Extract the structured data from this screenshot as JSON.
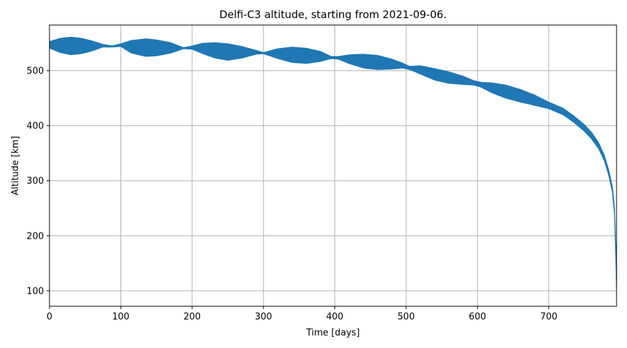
{
  "chart_data": {
    "type": "area",
    "title": "Delfi-C3 altitude, starting from 2021-09-06.",
    "xlabel": "Time [days]",
    "ylabel": "Altitude [km]",
    "xlim": [
      0,
      795
    ],
    "ylim": [
      72,
      583
    ],
    "xticks": [
      0,
      100,
      200,
      300,
      400,
      500,
      600,
      700
    ],
    "yticks": [
      100,
      200,
      300,
      400,
      500
    ],
    "grid": true,
    "legend": "none",
    "series": [
      {
        "color": "#1f77b4",
        "upper": [
          [
            0,
            553
          ],
          [
            15,
            559
          ],
          [
            30,
            561
          ],
          [
            45,
            559
          ],
          [
            60,
            554
          ],
          [
            75,
            548
          ],
          [
            88,
            545
          ],
          [
            100,
            549
          ],
          [
            115,
            555
          ],
          [
            135,
            558
          ],
          [
            150,
            556
          ],
          [
            170,
            551
          ],
          [
            188,
            542
          ],
          [
            200,
            545
          ],
          [
            215,
            550
          ],
          [
            232,
            551
          ],
          [
            250,
            549
          ],
          [
            270,
            544
          ],
          [
            290,
            537
          ],
          [
            300,
            533
          ],
          [
            320,
            540
          ],
          [
            340,
            543
          ],
          [
            360,
            541
          ],
          [
            380,
            535
          ],
          [
            395,
            526
          ],
          [
            405,
            526
          ],
          [
            420,
            529
          ],
          [
            440,
            530
          ],
          [
            460,
            528
          ],
          [
            480,
            521
          ],
          [
            495,
            514
          ],
          [
            505,
            508
          ],
          [
            520,
            509
          ],
          [
            540,
            504
          ],
          [
            560,
            498
          ],
          [
            580,
            490
          ],
          [
            595,
            482
          ],
          [
            605,
            479
          ],
          [
            620,
            478
          ],
          [
            640,
            474
          ],
          [
            660,
            466
          ],
          [
            680,
            456
          ],
          [
            700,
            443
          ],
          [
            720,
            432
          ],
          [
            735,
            418
          ],
          [
            750,
            402
          ],
          [
            760,
            388
          ],
          [
            770,
            369
          ],
          [
            778,
            346
          ],
          [
            784,
            320
          ],
          [
            789,
            290
          ],
          [
            792,
            255
          ],
          [
            794,
            180
          ],
          [
            795,
            95
          ]
        ],
        "lower": [
          [
            0,
            541
          ],
          [
            15,
            533
          ],
          [
            30,
            529
          ],
          [
            45,
            531
          ],
          [
            60,
            536
          ],
          [
            75,
            543
          ],
          [
            88,
            543
          ],
          [
            100,
            544
          ],
          [
            115,
            532
          ],
          [
            135,
            526
          ],
          [
            150,
            527
          ],
          [
            170,
            532
          ],
          [
            188,
            540
          ],
          [
            200,
            539
          ],
          [
            215,
            531
          ],
          [
            232,
            523
          ],
          [
            250,
            519
          ],
          [
            270,
            523
          ],
          [
            290,
            530
          ],
          [
            300,
            531
          ],
          [
            320,
            522
          ],
          [
            340,
            515
          ],
          [
            360,
            513
          ],
          [
            380,
            517
          ],
          [
            395,
            522
          ],
          [
            405,
            521
          ],
          [
            420,
            513
          ],
          [
            440,
            505
          ],
          [
            460,
            502
          ],
          [
            480,
            503
          ],
          [
            495,
            505
          ],
          [
            505,
            502
          ],
          [
            520,
            494
          ],
          [
            540,
            483
          ],
          [
            560,
            477
          ],
          [
            580,
            475
          ],
          [
            595,
            474
          ],
          [
            605,
            470
          ],
          [
            620,
            460
          ],
          [
            640,
            450
          ],
          [
            660,
            443
          ],
          [
            680,
            437
          ],
          [
            700,
            431
          ],
          [
            720,
            420
          ],
          [
            735,
            406
          ],
          [
            750,
            390
          ],
          [
            760,
            376
          ],
          [
            770,
            358
          ],
          [
            778,
            336
          ],
          [
            784,
            310
          ],
          [
            789,
            280
          ],
          [
            792,
            240
          ],
          [
            794,
            160
          ],
          [
            795,
            95
          ]
        ]
      }
    ]
  }
}
